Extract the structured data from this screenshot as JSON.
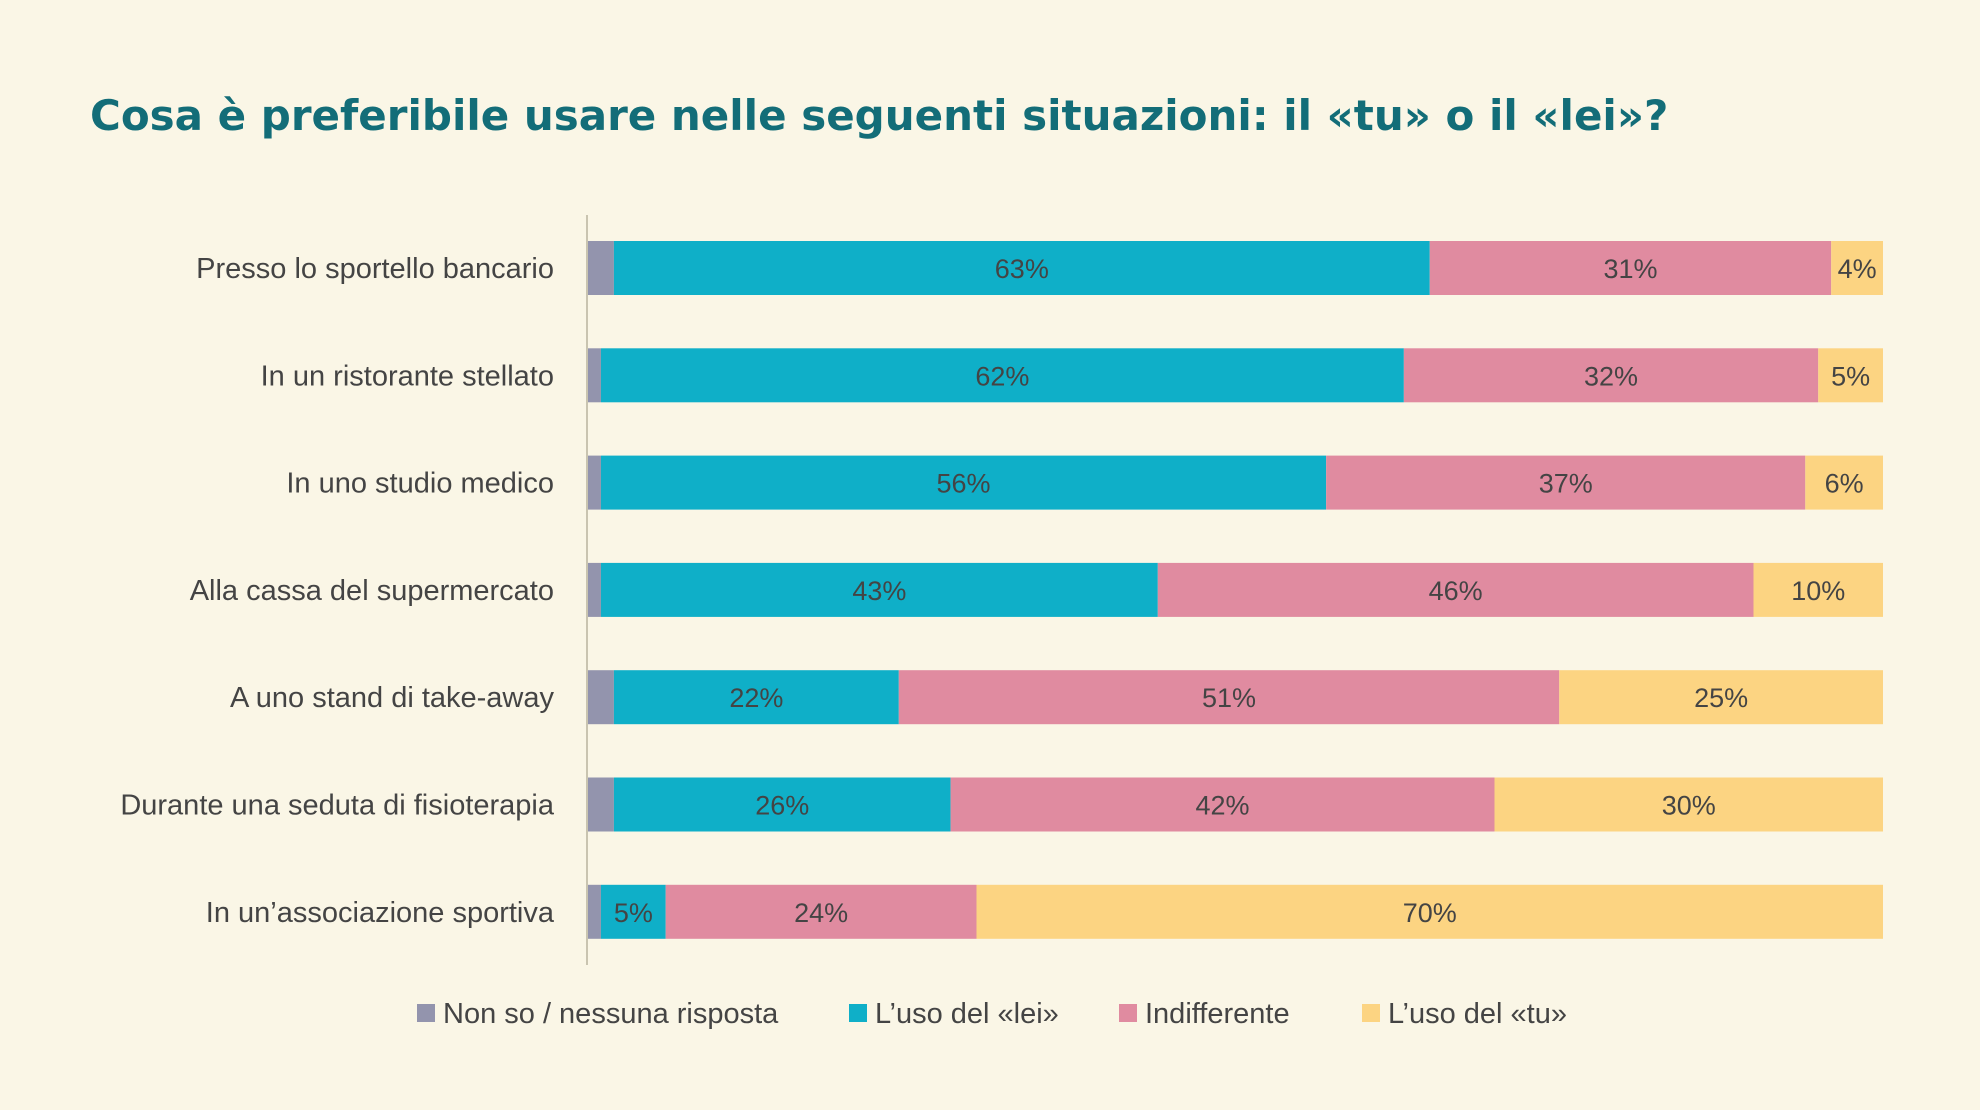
{
  "chart_data": {
    "type": "bar",
    "orientation": "horizontal",
    "stacked": true,
    "title": "Cosa è preferibile usare nelle seguenti situazioni: il «tu» o il «lei»?",
    "categories": [
      "Presso lo sportello bancario",
      "In un ristorante stellato",
      "In uno studio medico",
      "Alla cassa del supermercato",
      "A uno stand di take-away",
      "Durante una seduta di fisioterapia",
      "In un’associazione sportiva"
    ],
    "series": [
      {
        "name": "Non so / nessuna risposta",
        "color": "#9394ad",
        "show_labels": false,
        "values": [
          2,
          1,
          1,
          1,
          2,
          2,
          1
        ]
      },
      {
        "name": "L’uso del «lei»",
        "color": "#0fafc8",
        "show_labels": true,
        "values": [
          63,
          62,
          56,
          43,
          22,
          26,
          5
        ]
      },
      {
        "name": "Indifferente",
        "color": "#e08ba0",
        "show_labels": true,
        "values": [
          31,
          32,
          37,
          46,
          51,
          42,
          24
        ]
      },
      {
        "name": "L’uso del «tu»",
        "color": "#fcd482",
        "show_labels": true,
        "values": [
          4,
          5,
          6,
          10,
          25,
          30,
          70
        ]
      }
    ],
    "label_suffix": "%",
    "xlim": [
      0,
      100
    ],
    "legend_position": "bottom",
    "title_color": "#136d78",
    "text_color": "#444444"
  }
}
